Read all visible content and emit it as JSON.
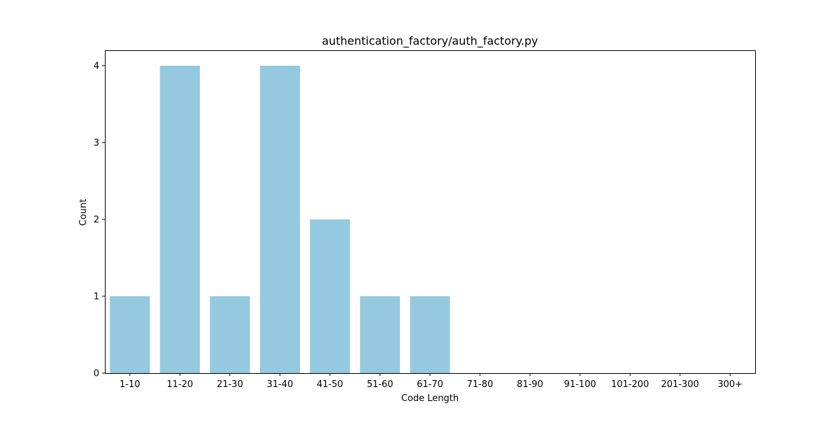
{
  "chart_data": {
    "type": "bar",
    "title": "authentication_factory/auth_factory.py",
    "xlabel": "Code Length",
    "ylabel": "Count",
    "categories": [
      "1-10",
      "11-20",
      "21-30",
      "31-40",
      "41-50",
      "51-60",
      "61-70",
      "71-80",
      "81-90",
      "91-100",
      "101-200",
      "201-300",
      "300+"
    ],
    "values": [
      1,
      4,
      1,
      4,
      2,
      1,
      1,
      0,
      0,
      0,
      0,
      0,
      0
    ],
    "ylim": [
      0,
      4.2
    ],
    "yticks": [
      0,
      1,
      2,
      3,
      4
    ],
    "grid": false,
    "bar_color": "#95c9df"
  }
}
